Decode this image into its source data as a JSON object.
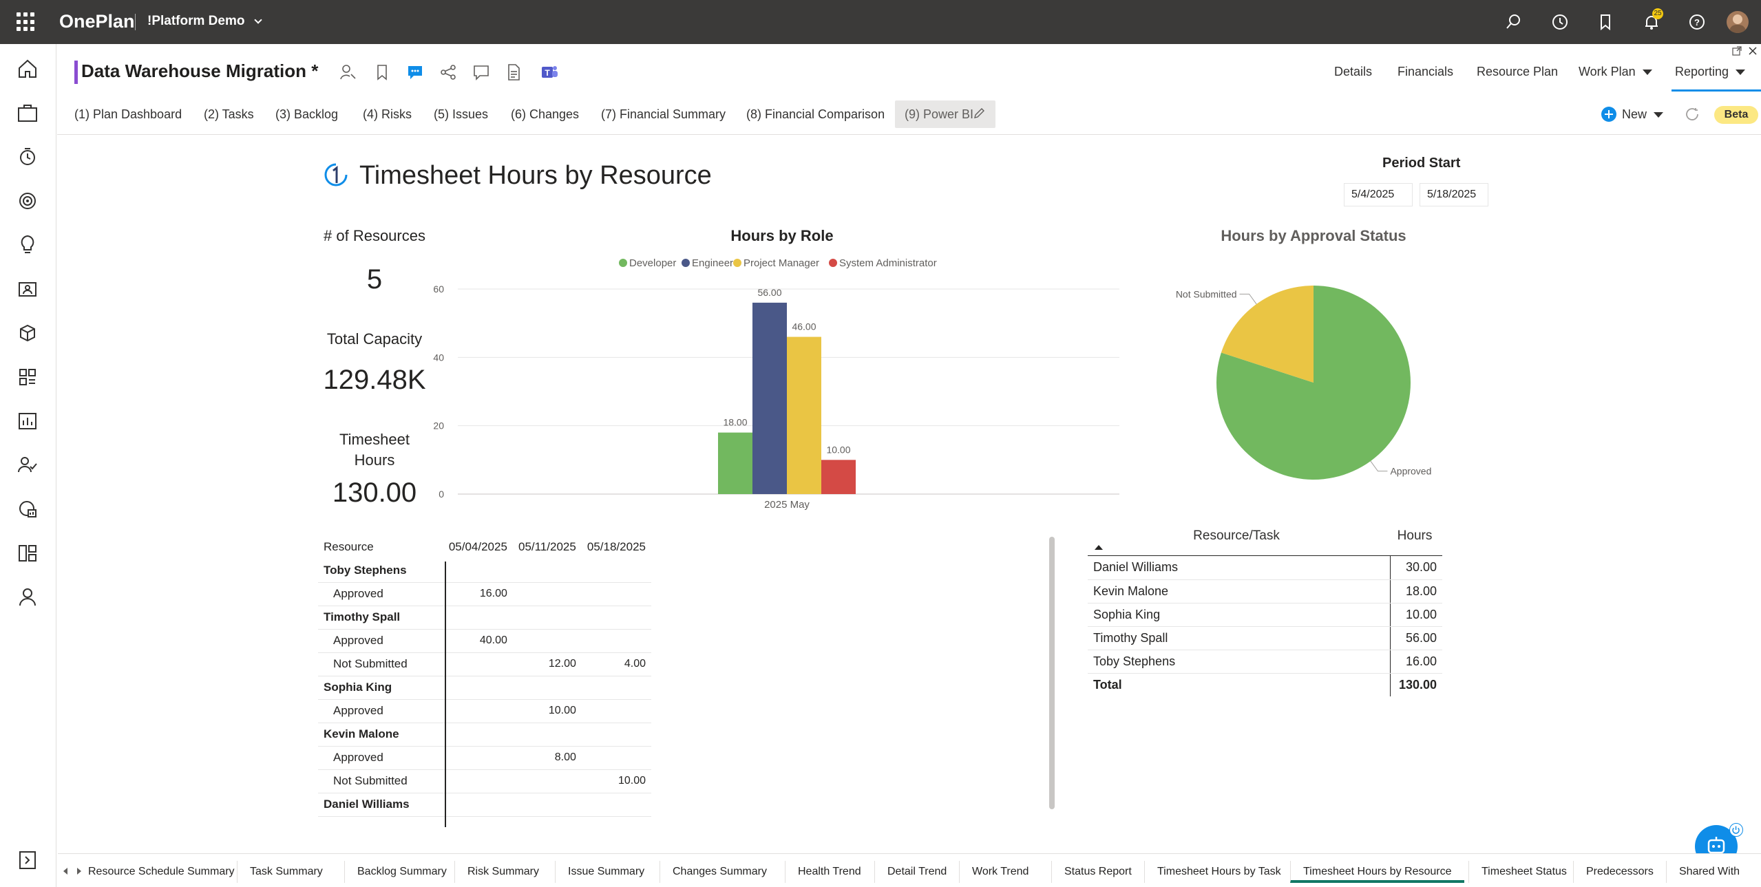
{
  "app": {
    "brand": "OnePlan",
    "tenant": "!Platform Demo",
    "notification_count": "25"
  },
  "header": {
    "title": "Data Warehouse Migration *",
    "nav": [
      "Details",
      "Financials",
      "Resource Plan",
      "Work Plan",
      "Reporting"
    ]
  },
  "report_tabs": [
    "(1) Plan Dashboard",
    "(2) Tasks",
    "(3) Backlog",
    "(4) Risks",
    "(5) Issues",
    "(6) Changes",
    "(7) Financial Summary",
    "(8) Financial Comparison",
    "(9) Power BI"
  ],
  "toolbar": {
    "new_label": "New",
    "beta_label": "Beta"
  },
  "report": {
    "title": "Timesheet Hours by Resource",
    "period_label": "Period Start",
    "period_from": "5/4/2025",
    "period_to": "5/18/2025",
    "kpis": {
      "resources_label": "# of Resources",
      "resources_value": "5",
      "capacity_label": "Total Capacity",
      "capacity_value": "129.48K",
      "timesheet_label_1": "Timesheet",
      "timesheet_label_2": "Hours",
      "timesheet_value": "130.00"
    },
    "matrix": {
      "headers": [
        "Resource",
        "05/04/2025",
        "05/11/2025",
        "05/18/2025"
      ],
      "rows": [
        {
          "label": "Toby Stephens",
          "level": 0,
          "values": [
            "",
            "",
            ""
          ]
        },
        {
          "label": "Approved",
          "level": 1,
          "values": [
            "16.00",
            "",
            ""
          ]
        },
        {
          "label": "Timothy Spall",
          "level": 0,
          "values": [
            "",
            "",
            ""
          ]
        },
        {
          "label": "Approved",
          "level": 1,
          "values": [
            "40.00",
            "",
            ""
          ]
        },
        {
          "label": "Not Submitted",
          "level": 1,
          "values": [
            "",
            "12.00",
            "4.00"
          ]
        },
        {
          "label": "Sophia King",
          "level": 0,
          "values": [
            "",
            "",
            ""
          ]
        },
        {
          "label": "Approved",
          "level": 1,
          "values": [
            "",
            "10.00",
            ""
          ]
        },
        {
          "label": "Kevin Malone",
          "level": 0,
          "values": [
            "",
            "",
            ""
          ]
        },
        {
          "label": "Approved",
          "level": 1,
          "values": [
            "",
            "8.00",
            ""
          ]
        },
        {
          "label": "Not Submitted",
          "level": 1,
          "values": [
            "",
            "",
            "10.00"
          ]
        },
        {
          "label": "Daniel Williams",
          "level": 0,
          "values": [
            "",
            "",
            ""
          ]
        }
      ]
    },
    "summary": {
      "headers": [
        "Resource/Task",
        "Hours"
      ],
      "rows": [
        {
          "name": "Daniel Williams",
          "hours": "30.00"
        },
        {
          "name": "Kevin Malone",
          "hours": "18.00"
        },
        {
          "name": "Sophia King",
          "hours": "10.00"
        },
        {
          "name": "Timothy Spall",
          "hours": "56.00"
        },
        {
          "name": "Toby Stephens",
          "hours": "16.00"
        }
      ],
      "total_label": "Total",
      "total_value": "130.00"
    }
  },
  "chart_data": [
    {
      "type": "bar",
      "title": "Hours by Role",
      "categories": [
        "2025 May"
      ],
      "series": [
        {
          "name": "Developer",
          "values": [
            18
          ],
          "color": "#72b85f"
        },
        {
          "name": "Engineer",
          "values": [
            56
          ],
          "color": "#4a5888"
        },
        {
          "name": "Project Manager",
          "values": [
            46
          ],
          "color": "#eac544"
        },
        {
          "name": "System Administrator",
          "values": [
            10
          ],
          "color": "#d44a45"
        }
      ],
      "value_labels": [
        "18.00",
        "56.00",
        "46.00",
        "10.00"
      ],
      "ylim": [
        0,
        60
      ],
      "yticks": [
        "0",
        "20",
        "40",
        "60"
      ],
      "grid": true,
      "legend": "top"
    },
    {
      "type": "pie",
      "title": "Hours by Approval Status",
      "slices": [
        {
          "label": "Approved",
          "value": 104,
          "color": "#72b85f"
        },
        {
          "label": "Not Submitted",
          "value": 26,
          "color": "#eac544"
        }
      ]
    }
  ],
  "bottom_tabs": [
    "Resource Schedule Summary",
    "Task Summary",
    "Backlog Summary",
    "Risk Summary",
    "Issue Summary",
    "Changes Summary",
    "Health Trend",
    "Detail Trend",
    "Work Trend",
    "Status Report",
    "Timesheet Hours by Task",
    "Timesheet Hours by Resource",
    "Timesheet Status",
    "Predecessors",
    "Shared With"
  ],
  "active_bottom_tab": "Timesheet Hours by Resource",
  "colors": {
    "accent": "#8a4dd1",
    "brand_blue": "#0f8de8",
    "active_tab": "#117865",
    "topbar": "#3b3a39"
  }
}
